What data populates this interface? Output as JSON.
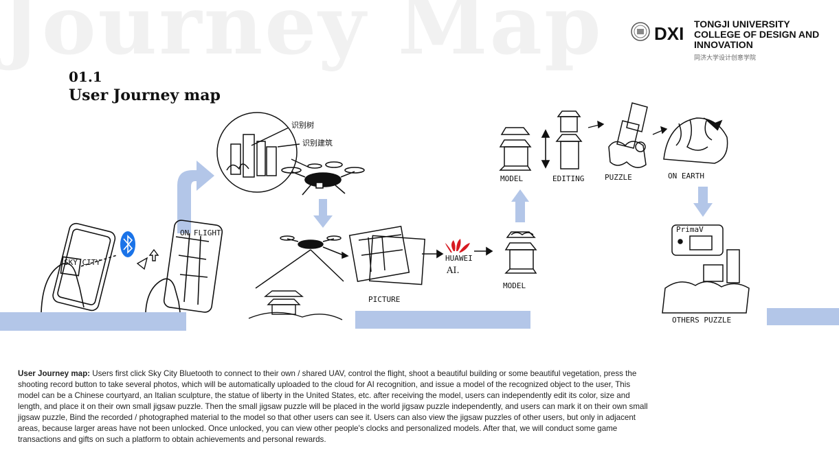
{
  "watermark": "Journey Map",
  "section": {
    "number": "01.1",
    "title": "User Journey map"
  },
  "logo": {
    "mark": "DXI",
    "line1": "TONGJI UNIVERSITY",
    "line2": "COLLEGE OF DESIGN AND",
    "line3": "INNOVATION",
    "chinese": "同济大学设计创意学院"
  },
  "sketch_labels": {
    "sky_city": "SKY CITY",
    "phone_screen": "ON FLIGHT",
    "picture": "PICTURE",
    "huawei": "HUAWEI",
    "ai": "AI.",
    "model_lower": "MODEL",
    "model_upper": "MODEL",
    "editing": "EDITING",
    "puzzle": "PUZZLE",
    "on_earth": "ON EARTH",
    "others_puzzle": "OTHERS PUZZLE",
    "primav": "PrimaV",
    "recognize_cn": "识别树",
    "building_cn": "识别建筑"
  },
  "colors": {
    "flow": "#b3c6e8",
    "bluetooth": "#1a73e8",
    "huawei": "#d71920",
    "watermark": "#f1f1f1"
  },
  "description": {
    "label": "User Journey map:",
    "body": " Users first click Sky City Bluetooth to connect to their own / shared UAV, control the flight, shoot a beautiful building or some beautiful vegetation, press the shooting record button to take several photos, which will be automatically uploaded to the cloud for AI recognition, and issue a model of the recognized object to the user, This model can be a Chinese courtyard, an Italian sculpture, the statue of liberty in the United States, etc. after receiving the model, users can independently edit its color, size and length, and place it on their own small jigsaw puzzle. Then the small jigsaw puzzle will be placed in the world jigsaw puzzle independently, and users can mark it on their own small jigsaw puzzle, Bind the recorded / photographed material to the model so that other users can see it. Users can also view the jigsaw puzzles of other users, but only in adjacent areas, because larger areas have not been unlocked. Once unlocked, you can view other people's clocks and personalized models. After that, we will conduct some game transactions and gifts on such a platform to obtain achievements and personal rewards."
  }
}
